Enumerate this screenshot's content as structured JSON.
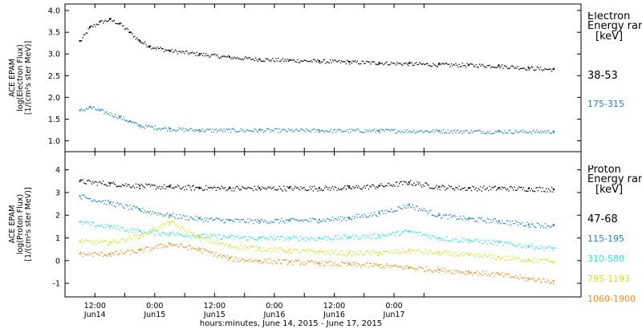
{
  "chart_data": [
    {
      "type": "scatter",
      "panel": "electron",
      "ylabel": [
        "ACE EPAM",
        "log(Electron Flux)",
        "[1/(cm²s ster MeV)]"
      ],
      "ylim": [
        0.75,
        4.15
      ],
      "yticks": [
        "4.0",
        "3.5",
        "3.0",
        "2.5",
        "2.0",
        "1.5",
        "1.0"
      ],
      "ytick_values": [
        4.0,
        3.5,
        3.0,
        2.5,
        2.0,
        1.5,
        1.0
      ],
      "legend_title": [
        "Electron",
        "Energy range",
        "[keV]"
      ],
      "series": [
        {
          "name": "38-53",
          "color": "#000000",
          "x": [
            0,
            4,
            8,
            12,
            16,
            20,
            24,
            28,
            36,
            48,
            60,
            72,
            84,
            96,
            108,
            120,
            132,
            144,
            156,
            168,
            180,
            190
          ],
          "y": [
            3.3,
            3.62,
            3.74,
            3.8,
            3.7,
            3.5,
            3.3,
            3.18,
            3.08,
            3.0,
            2.93,
            2.88,
            2.86,
            2.84,
            2.82,
            2.8,
            2.78,
            2.76,
            2.75,
            2.73,
            2.68,
            2.65
          ]
        },
        {
          "name": "175-315",
          "color": "#1f7fd0",
          "x": [
            0,
            4,
            8,
            16,
            20,
            24,
            36,
            48,
            72,
            96,
            120,
            144,
            168,
            190
          ],
          "y": [
            1.7,
            1.78,
            1.7,
            1.55,
            1.45,
            1.35,
            1.28,
            1.25,
            1.25,
            1.24,
            1.24,
            1.23,
            1.22,
            1.22
          ]
        }
      ]
    },
    {
      "type": "scatter",
      "panel": "proton",
      "ylabel": [
        "ACE EPAM",
        "log(Proton Flux)",
        "[1/(cm²s ster MeV)]"
      ],
      "ylim": [
        -1.6,
        4.8
      ],
      "yticks": [
        "4",
        "3",
        "2",
        "1",
        "0",
        "-1"
      ],
      "ytick_values": [
        4,
        3,
        2,
        1,
        0,
        -1
      ],
      "legend_title": [
        "Proton",
        "Energy range",
        "[keV]"
      ],
      "series": [
        {
          "name": "47-68",
          "color": "#000000",
          "x": [
            0,
            12,
            24,
            36,
            48,
            60,
            72,
            84,
            96,
            108,
            120,
            132,
            144,
            156,
            168,
            180,
            190
          ],
          "y": [
            3.5,
            3.4,
            3.3,
            3.25,
            3.22,
            3.2,
            3.2,
            3.2,
            3.2,
            3.22,
            3.3,
            3.45,
            3.25,
            3.2,
            3.2,
            3.18,
            3.15
          ]
        },
        {
          "name": "115-195",
          "color": "#1f7fd0",
          "x": [
            0,
            12,
            24,
            36,
            48,
            60,
            72,
            84,
            96,
            108,
            120,
            132,
            144,
            156,
            168,
            180,
            190
          ],
          "y": [
            2.85,
            2.55,
            2.25,
            2.0,
            1.85,
            1.78,
            1.75,
            1.78,
            1.8,
            1.9,
            2.1,
            2.45,
            2.0,
            1.85,
            1.75,
            1.6,
            1.55
          ]
        },
        {
          "name": "310-580",
          "color": "#2ee6d6",
          "x": [
            0,
            12,
            24,
            36,
            48,
            60,
            72,
            84,
            96,
            108,
            120,
            132,
            144,
            156,
            168,
            180,
            190
          ],
          "y": [
            1.7,
            1.5,
            1.3,
            1.2,
            1.1,
            1.05,
            1.0,
            1.0,
            1.0,
            1.05,
            1.1,
            1.3,
            1.0,
            0.9,
            0.8,
            0.65,
            0.55
          ]
        },
        {
          "name": "795-1193",
          "color": "#c8e81a",
          "x": [
            0,
            12,
            24,
            36,
            48,
            60,
            72,
            84,
            96,
            108,
            120,
            132,
            144,
            156,
            168,
            180,
            190
          ],
          "y": [
            0.85,
            0.8,
            1.1,
            1.7,
            1.0,
            0.65,
            0.55,
            0.45,
            0.4,
            0.35,
            0.35,
            0.45,
            0.35,
            0.25,
            0.15,
            0.05,
            -0.05
          ]
        },
        {
          "name": "1060-1900",
          "color": "#f08a1a",
          "x": [
            0,
            12,
            24,
            36,
            48,
            60,
            72,
            84,
            96,
            108,
            120,
            132,
            144,
            156,
            168,
            180,
            190
          ],
          "y": [
            0.3,
            0.3,
            0.45,
            0.75,
            0.5,
            0.1,
            0.0,
            -0.05,
            -0.1,
            -0.15,
            -0.2,
            -0.3,
            -0.4,
            -0.5,
            -0.6,
            -0.8,
            -0.9
          ]
        }
      ]
    }
  ],
  "x_axis": {
    "xlim": [
      -6,
      201
    ],
    "ticks": [
      {
        "value": 6,
        "time": "12:00",
        "date": "Jun14"
      },
      {
        "value": 18,
        "time": "",
        "date": ""
      },
      {
        "value": 30,
        "time": "0:00",
        "date": "Jun15"
      },
      {
        "value": 42,
        "time": "",
        "date": ""
      },
      {
        "value": 54,
        "time": "12:00",
        "date": "Jun15"
      },
      {
        "value": 66,
        "time": "",
        "date": ""
      },
      {
        "value": 78,
        "time": "0:00",
        "date": "Jun16"
      },
      {
        "value": 90,
        "time": "",
        "date": ""
      },
      {
        "value": 102,
        "time": "12:00",
        "date": "Jun16"
      },
      {
        "value": 114,
        "time": "",
        "date": ""
      },
      {
        "value": 126,
        "time": "0:00",
        "date": "Jun17"
      },
      {
        "value": 138,
        "time": "",
        "date": ""
      }
    ],
    "label": "hours:minutes, June 14, 2015 - June 17, 2015"
  }
}
